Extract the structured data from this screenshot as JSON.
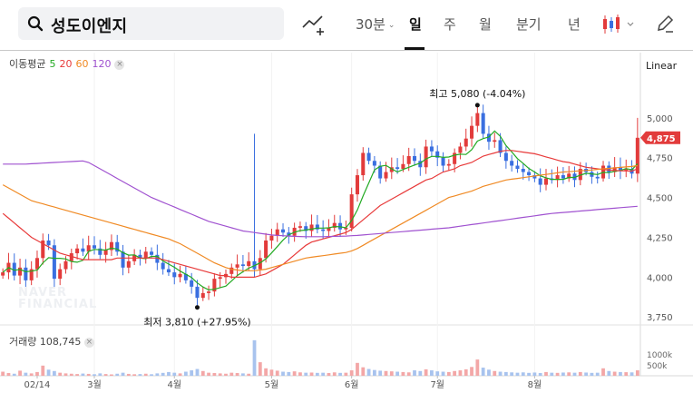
{
  "header": {
    "search_query": "성도이엔지",
    "interval": "30분",
    "tabs": [
      "일",
      "주",
      "월",
      "분기",
      "년"
    ],
    "active_tab": "일"
  },
  "indicators": {
    "label": "이동평균",
    "ma": [
      {
        "period": "5",
        "color": "#22aa22"
      },
      {
        "period": "20",
        "color": "#e83a3a"
      },
      {
        "period": "60",
        "color": "#f08a24"
      },
      {
        "period": "120",
        "color": "#a052d0"
      }
    ],
    "close_glyph": "×"
  },
  "scale": {
    "label": "Linear"
  },
  "watermark": [
    "NAVER",
    "FINANCIAL"
  ],
  "volume": {
    "label": "거래량",
    "value": "108,745",
    "axis": [
      "1000k",
      "500k"
    ]
  },
  "chart_data": {
    "type": "candlestick",
    "ylim": [
      3700,
      5250
    ],
    "yticks": [
      "5,000",
      "4,750",
      "4,500",
      "4,250",
      "4,000",
      "3,750"
    ],
    "ytick_values": [
      5000,
      4750,
      4500,
      4250,
      4000,
      3750
    ],
    "xlabels": [
      "02/14",
      "3월",
      "4월",
      "5월",
      "6월",
      "7월",
      "8월"
    ],
    "xlabel_index": [
      6,
      16,
      30,
      47,
      61,
      76,
      93
    ],
    "current_price": "4,875",
    "current_value": 4875,
    "high_label": "최고 5,080 (-4.04%)",
    "high": {
      "index": 83,
      "value": 5080
    },
    "low_label": "최저 3,810 (+27.95%)",
    "low": {
      "index": 34,
      "value": 3810
    },
    "closes": [
      4030,
      4090,
      4010,
      4060,
      3980,
      4050,
      4120,
      4230,
      4200,
      3990,
      4050,
      4100,
      4150,
      4180,
      4160,
      4200,
      4180,
      4140,
      4170,
      4220,
      4160,
      4060,
      4100,
      4140,
      4120,
      4160,
      4140,
      4090,
      4050,
      4030,
      4000,
      4020,
      3980,
      3940,
      3870,
      3900,
      3910,
      3990,
      4000,
      4020,
      4060,
      4080,
      4070,
      4100,
      4050,
      4120,
      4230,
      4260,
      4300,
      4280,
      4260,
      4310,
      4320,
      4290,
      4330,
      4300,
      4290,
      4310,
      4340,
      4300,
      4310,
      4520,
      4640,
      4780,
      4730,
      4700,
      4620,
      4660,
      4690,
      4680,
      4710,
      4760,
      4730,
      4690,
      4820,
      4790,
      4750,
      4700,
      4710,
      4780,
      4820,
      4870,
      4950,
      5030,
      4900,
      4850,
      4860,
      4780,
      4730,
      4700,
      4680,
      4660,
      4640,
      4620,
      4580,
      4620,
      4610,
      4640,
      4620,
      4650,
      4610,
      4680,
      4660,
      4630,
      4620,
      4700,
      4660,
      4690,
      4670,
      4680,
      4650,
      4875
    ],
    "volume": [
      120,
      80,
      60,
      150,
      90,
      70,
      110,
      300,
      180,
      140,
      90,
      70,
      60,
      50,
      65,
      55,
      45,
      70,
      50,
      40,
      60,
      90,
      55,
      45,
      50,
      60,
      45,
      70,
      85,
      110,
      90,
      70,
      120,
      160,
      200,
      140,
      90,
      80,
      70,
      60,
      90,
      80,
      70,
      60,
      1050,
      400,
      220,
      180,
      150,
      120,
      110,
      130,
      100,
      90,
      95,
      85,
      90,
      80,
      100,
      85,
      90,
      160,
      380,
      250,
      200,
      170,
      150,
      140,
      130,
      120,
      110,
      100,
      160,
      140,
      190,
      160,
      130,
      120,
      110,
      140,
      160,
      190,
      260,
      480,
      240,
      180,
      140,
      120,
      110,
      100,
      90,
      100,
      85,
      95,
      80,
      110,
      90,
      85,
      95,
      100,
      90,
      110,
      95,
      85,
      90,
      220,
      140,
      120,
      110,
      105,
      100,
      160
    ],
    "ma_series": [
      {
        "name": "5",
        "values": [
          4030,
          4060,
          4043,
          4048,
          4034,
          4038,
          4044,
          4090,
          4122,
          4118,
          4118,
          4114,
          4098,
          4094,
          4106,
          4162,
          4174,
          4172,
          4170,
          4182,
          4176,
          4154,
          4138,
          4140,
          4120,
          4116,
          4130,
          4130,
          4102,
          4082,
          4062,
          4038,
          4018,
          3998,
          3964,
          3938,
          3920,
          3924,
          3934,
          3944,
          3976,
          4010,
          4034,
          4056,
          4072,
          4090,
          4114,
          4152,
          4192,
          4232,
          4266,
          4282,
          4292,
          4296,
          4302,
          4308,
          4308,
          4310,
          4318,
          4316,
          4310,
          4356,
          4422,
          4510,
          4592,
          4674,
          4696,
          4702,
          4680,
          4660,
          4676,
          4690,
          4704,
          4716,
          4742,
          4758,
          4758,
          4752,
          4754,
          4766,
          4772,
          4770,
          4800,
          4854,
          4870,
          4880,
          4918,
          4884,
          4826,
          4786,
          4744,
          4714,
          4682,
          4660,
          4636,
          4624,
          4614,
          4614,
          4614,
          4626,
          4626,
          4640,
          4652,
          4648,
          4644,
          4658,
          4656,
          4664,
          4670,
          4682,
          4674,
          4711
        ]
      },
      {
        "name": "20",
        "values": [
          4400,
          4370,
          4340,
          4310,
          4280,
          4250,
          4230,
          4210,
          4190,
          4170,
          4150,
          4140,
          4130,
          4120,
          4110,
          4110,
          4110,
          4110,
          4110,
          4110,
          4120,
          4120,
          4120,
          4120,
          4120,
          4120,
          4120,
          4120,
          4110,
          4100,
          4090,
          4080,
          4070,
          4060,
          4050,
          4040,
          4030,
          4020,
          4010,
          4010,
          4000,
          4000,
          4000,
          4000,
          4000,
          4010,
          4020,
          4040,
          4060,
          4080,
          4110,
          4140,
          4170,
          4200,
          4220,
          4230,
          4240,
          4250,
          4260,
          4270,
          4280,
          4300,
          4330,
          4360,
          4390,
          4420,
          4450,
          4470,
          4490,
          4510,
          4530,
          4550,
          4570,
          4590,
          4610,
          4620,
          4640,
          4660,
          4670,
          4680,
          4700,
          4710,
          4720,
          4740,
          4760,
          4770,
          4780,
          4790,
          4795,
          4795,
          4790,
          4785,
          4780,
          4775,
          4765,
          4755,
          4745,
          4735,
          4725,
          4720,
          4710,
          4700,
          4690,
          4685,
          4680,
          4675,
          4672,
          4670,
          4668,
          4667,
          4666,
          4680
        ]
      },
      {
        "name": "60",
        "values": [
          4580,
          4560,
          4540,
          4520,
          4500,
          4480,
          4470,
          4460,
          4450,
          4440,
          4430,
          4420,
          4410,
          4400,
          4390,
          4380,
          4370,
          4360,
          4350,
          4340,
          4330,
          4320,
          4310,
          4300,
          4290,
          4280,
          4270,
          4260,
          4250,
          4240,
          4225,
          4210,
          4190,
          4170,
          4150,
          4130,
          4110,
          4090,
          4075,
          4060,
          4050,
          4045,
          4040,
          4040,
          4040,
          4045,
          4050,
          4060,
          4070,
          4080,
          4090,
          4100,
          4110,
          4120,
          4125,
          4130,
          4135,
          4140,
          4145,
          4150,
          4155,
          4165,
          4180,
          4200,
          4220,
          4240,
          4260,
          4280,
          4300,
          4320,
          4340,
          4360,
          4380,
          4400,
          4420,
          4440,
          4460,
          4480,
          4500,
          4510,
          4520,
          4530,
          4540,
          4555,
          4570,
          4580,
          4590,
          4600,
          4610,
          4615,
          4620,
          4625,
          4630,
          4635,
          4640,
          4645,
          4650,
          4655,
          4660,
          4662,
          4665,
          4668,
          4670,
          4673,
          4676,
          4680,
          4683,
          4686,
          4689,
          4692,
          4695,
          4700
        ]
      },
      {
        "name": "120",
        "values": [
          4710,
          4710,
          4710,
          4710,
          4710,
          4712,
          4714,
          4716,
          4718,
          4720,
          4722,
          4724,
          4726,
          4728,
          4730,
          4720,
          4700,
          4680,
          4660,
          4640,
          4620,
          4600,
          4580,
          4560,
          4540,
          4520,
          4500,
          4485,
          4470,
          4455,
          4440,
          4425,
          4410,
          4395,
          4380,
          4365,
          4350,
          4340,
          4330,
          4320,
          4310,
          4300,
          4290,
          4285,
          4280,
          4275,
          4270,
          4265,
          4262,
          4260,
          4258,
          4256,
          4255,
          4254,
          4254,
          4254,
          4254,
          4255,
          4256,
          4257,
          4258,
          4260,
          4262,
          4265,
          4268,
          4271,
          4274,
          4277,
          4280,
          4283,
          4286,
          4289,
          4292,
          4295,
          4298,
          4301,
          4304,
          4307,
          4310,
          4315,
          4320,
          4325,
          4330,
          4335,
          4340,
          4345,
          4350,
          4355,
          4360,
          4365,
          4370,
          4375,
          4380,
          4385,
          4390,
          4395,
          4400,
          4403,
          4406,
          4409,
          4412,
          4415,
          4418,
          4421,
          4424,
          4427,
          4430,
          4433,
          4436,
          4439,
          4442,
          4445
        ]
      }
    ]
  }
}
